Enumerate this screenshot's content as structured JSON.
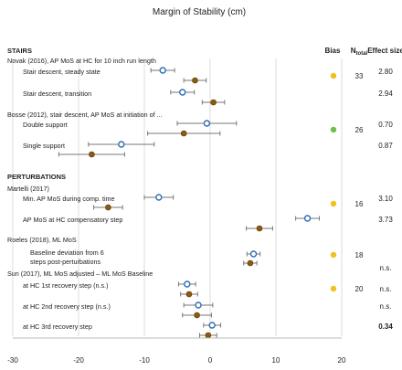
{
  "chart_data": {
    "type": "scatter",
    "title": "Margin of Stability (cm)",
    "columns": {
      "bias": "Bias",
      "ntotal": "N",
      "ntotal_sub": "total",
      "effect": "Effect size"
    },
    "xlim": [
      -30,
      20
    ],
    "xticks": [
      -30,
      -20,
      -10,
      0,
      10,
      20
    ],
    "colors": {
      "open_marker": "#2f6db5",
      "filled_marker": "#8a5a12",
      "bias_yellow": "#f0c020",
      "bias_green": "#6cc04a",
      "gridline": "#dddddd",
      "errorbar": "#777777"
    },
    "rows": [
      {
        "kind": "section",
        "label": "STAIRS"
      },
      {
        "kind": "study",
        "label": "Novak (2016), AP MoS at HC for 10 inch run length",
        "bias": "yellow",
        "n": "33"
      },
      {
        "kind": "condition",
        "label": "Stair descent, steady state",
        "open": {
          "mean": -7.2,
          "low": -9.0,
          "high": -5.4
        },
        "filled": {
          "mean": -2.3,
          "low": -4.0,
          "high": -0.6
        },
        "effect": "2.80"
      },
      {
        "kind": "condition",
        "label": "Stair descent, transition",
        "open": {
          "mean": -4.2,
          "low": -6.0,
          "high": -2.4
        },
        "filled": {
          "mean": 0.5,
          "low": -1.2,
          "high": 2.2
        },
        "effect": "2.94"
      },
      {
        "kind": "study",
        "label": "Bosse (2012), stair descent, AP MoS at initiation of ...",
        "bias": "green",
        "n": "26"
      },
      {
        "kind": "condition",
        "label": "Double support",
        "open": {
          "mean": -0.5,
          "low": -5.0,
          "high": 4.0
        },
        "filled": {
          "mean": -4.0,
          "low": -9.5,
          "high": 1.5
        },
        "effect": "0.70"
      },
      {
        "kind": "condition",
        "label": "Single support",
        "open": {
          "mean": -13.5,
          "low": -18.5,
          "high": -8.5
        },
        "filled": {
          "mean": -18.0,
          "low": -23.0,
          "high": -13.0
        },
        "effect": "0.87"
      },
      {
        "kind": "spacer"
      },
      {
        "kind": "section",
        "label": "PERTURBATIONS"
      },
      {
        "kind": "study",
        "label": "Martelli (2017)",
        "bias": "yellow",
        "n": "16"
      },
      {
        "kind": "condition",
        "label": "Min. AP MoS during comp. time",
        "open": {
          "mean": -7.8,
          "low": -10.0,
          "high": -5.6
        },
        "filled": {
          "mean": -15.5,
          "low": -17.7,
          "high": -13.3
        },
        "effect": "3.10"
      },
      {
        "kind": "condition",
        "label": "AP MoS at HC compensatory step",
        "open": {
          "mean": 14.8,
          "low": 13.0,
          "high": 16.6
        },
        "filled": {
          "mean": 7.5,
          "low": 5.5,
          "high": 9.5
        },
        "effect": "3.73"
      },
      {
        "kind": "study",
        "label": "Roeles (2018), ML MoS",
        "bias": "yellow",
        "n": "18"
      },
      {
        "kind": "condition",
        "label": "Baseline deviation from 6 steps post-perturbations",
        "open": {
          "mean": 6.6,
          "low": 5.6,
          "high": 7.6
        },
        "filled": {
          "mean": 6.1,
          "low": 5.1,
          "high": 7.1
        },
        "effect": "n.s."
      },
      {
        "kind": "study",
        "label": "Sun (2017), ML MoS adjusted –  ML MoS Baseline",
        "bias": "yellow",
        "n": "20",
        "effect": "n.s."
      },
      {
        "kind": "condition",
        "label": "at HC 1st recovery step (n.s.)",
        "open": {
          "mean": -3.5,
          "low": -4.8,
          "high": -2.2
        },
        "filled": {
          "mean": -3.2,
          "low": -4.5,
          "high": -1.9
        },
        "effect": ""
      },
      {
        "kind": "condition",
        "label": "at HC 2nd recovery step (n.s.)",
        "open": {
          "mean": -1.8,
          "low": -4.0,
          "high": 0.4
        },
        "filled": {
          "mean": -2.0,
          "low": -4.2,
          "high": 0.2
        },
        "effect": "n.s."
      },
      {
        "kind": "condition",
        "label": "at HC 3rd recovery step",
        "open": {
          "mean": 0.3,
          "low": -1.0,
          "high": 1.6
        },
        "filled": {
          "mean": -0.3,
          "low": -1.6,
          "high": 1.0
        },
        "effect": "0.34"
      }
    ]
  }
}
